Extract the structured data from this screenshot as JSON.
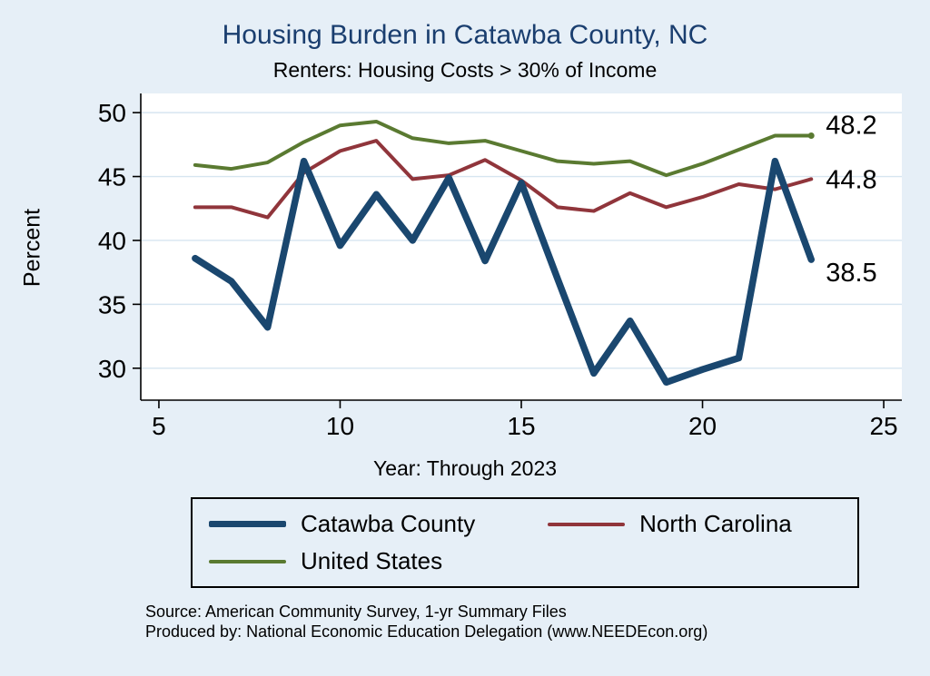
{
  "chart_data": {
    "type": "line",
    "title": "Housing Burden in Catawba County, NC",
    "subtitle": "Renters: Housing Costs > 30% of Income",
    "xlabel": "Year: Through 2023",
    "ylabel": "Percent",
    "grid": true,
    "legend_position": "bottom",
    "xlim": [
      4.5,
      25.5
    ],
    "ylim": [
      27.5,
      51.5
    ],
    "xticks": [
      5,
      10,
      15,
      20,
      25
    ],
    "yticks": [
      30,
      35,
      40,
      45,
      50
    ],
    "x": [
      6,
      7,
      8,
      9,
      10,
      11,
      12,
      13,
      14,
      15,
      16,
      17,
      18,
      19,
      20,
      21,
      22,
      23
    ],
    "series": [
      {
        "name": "Catawba County",
        "color": "#1a476f",
        "line_width": 7.5,
        "end_label": "38.5",
        "end_label_dy": 14,
        "end_marker": false,
        "values": [
          38.6,
          36.8,
          33.2,
          46.2,
          39.6,
          43.6,
          40.0,
          44.9,
          38.4,
          44.5,
          37.0,
          29.6,
          33.7,
          28.9,
          29.9,
          30.8,
          46.2,
          38.5
        ]
      },
      {
        "name": "North Carolina",
        "color": "#90353b",
        "line_width": 4,
        "end_label": "44.8",
        "end_label_dy": 0,
        "end_marker": false,
        "values": [
          42.6,
          42.6,
          41.8,
          45.3,
          47.0,
          47.8,
          44.8,
          45.1,
          46.3,
          44.7,
          42.6,
          42.3,
          43.7,
          42.6,
          43.4,
          44.4,
          44.0,
          44.8
        ]
      },
      {
        "name": "United States",
        "color": "#5a7a31",
        "line_width": 4,
        "end_label": "48.2",
        "end_label_dy": -12,
        "end_marker": true,
        "values": [
          45.9,
          45.6,
          46.1,
          47.7,
          49.0,
          49.3,
          48.0,
          47.6,
          47.8,
          47.0,
          46.2,
          46.0,
          46.2,
          45.1,
          46.0,
          47.1,
          48.2,
          48.2
        ]
      }
    ]
  },
  "notes": {
    "source": "Source: American Community Survey, 1-yr Summary Files",
    "produced_by": "Produced by: National Economic Education Delegation (www.NEEDEcon.org)"
  },
  "colors": {
    "page_background": "#e6eff7",
    "plot_background": "#ffffff",
    "gridline": "#d6e5f0",
    "axis": "#000000",
    "title": "#1a3e6f"
  }
}
